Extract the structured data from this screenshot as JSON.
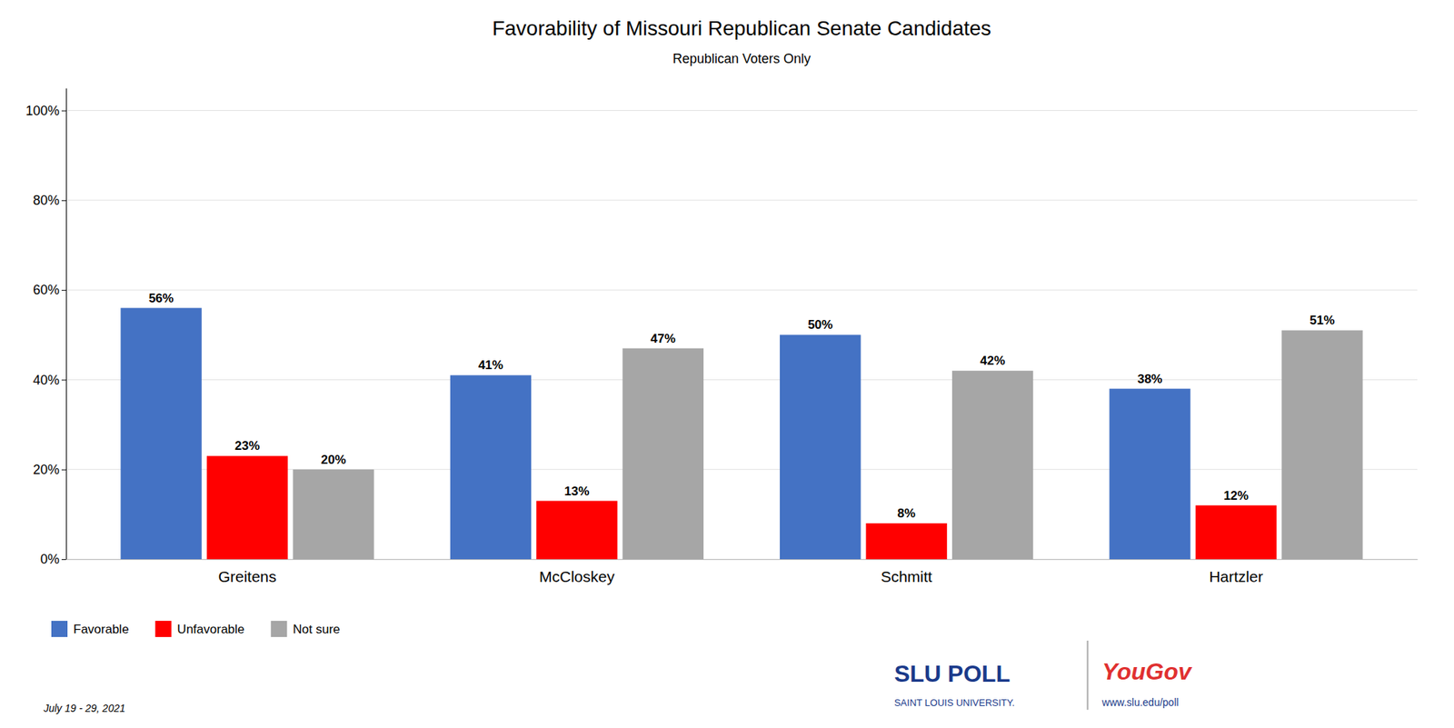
{
  "chart_data": {
    "type": "bar",
    "title": "Favorability of Missouri Republican Senate Candidates",
    "subtitle": "Republican Voters Only",
    "categories": [
      "Greitens",
      "McCloskey",
      "Schmitt",
      "Hartzler"
    ],
    "series": [
      {
        "name": "Favorable",
        "color": "#4472c4",
        "values": [
          56,
          41,
          50,
          38
        ],
        "value_labels": [
          "56%",
          "41%",
          "50%",
          "38%"
        ]
      },
      {
        "name": "Unfavorable",
        "color": "#ff0000",
        "values": [
          23,
          13,
          8,
          12
        ],
        "value_labels": [
          "23%",
          "13%",
          "8%",
          "12%"
        ]
      },
      {
        "name": "Not sure",
        "color": "#a6a6a6",
        "values": [
          20,
          47,
          42,
          51
        ],
        "value_labels": [
          "20%",
          "47%",
          "42%",
          "51%"
        ]
      }
    ],
    "ylim": [
      0,
      105
    ],
    "yticks": [
      {
        "value": 0,
        "label": "0%"
      },
      {
        "value": 20,
        "label": "20%"
      },
      {
        "value": 40,
        "label": "40%"
      },
      {
        "value": 60,
        "label": "60%"
      },
      {
        "value": 80,
        "label": "80%"
      },
      {
        "value": 100,
        "label": "100%"
      }
    ],
    "grid": true,
    "legend": "lower left",
    "data_labels": true,
    "annotations": [
      "July 19 - 29, 2021",
      "SLU POLL",
      "SAINT LOUIS UNIVERSITY.",
      "YouGov",
      "www.slu.edu/poll"
    ]
  }
}
